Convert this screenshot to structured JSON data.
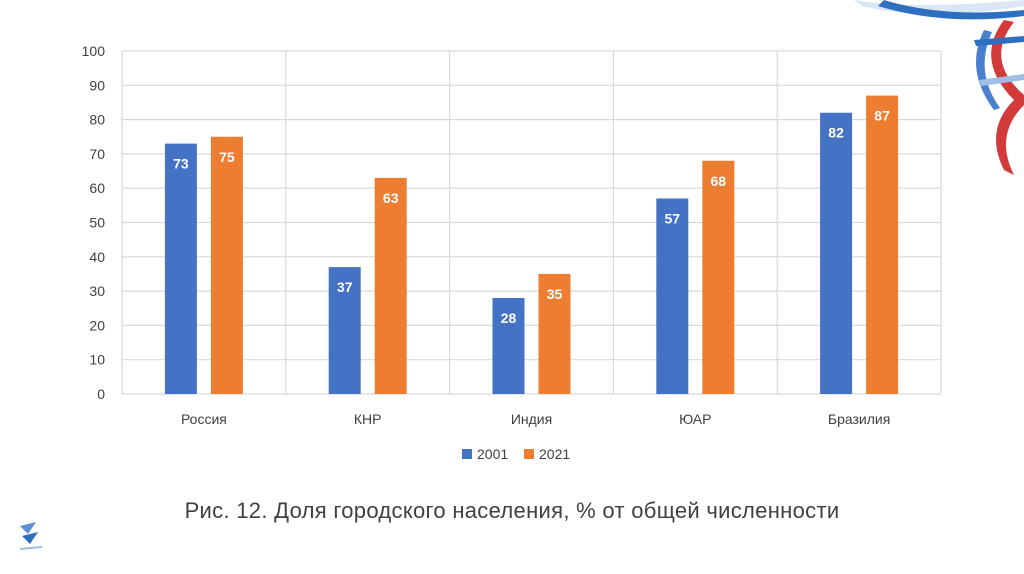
{
  "chart_data": {
    "type": "bar",
    "categories": [
      "Россия",
      "КНР",
      "Индия",
      "ЮАР",
      "Бразилия"
    ],
    "series": [
      {
        "name": "2001",
        "color": "#4472c4",
        "values": [
          73,
          37,
          28,
          57,
          82
        ]
      },
      {
        "name": "2021",
        "color": "#ed7d31",
        "values": [
          75,
          63,
          35,
          68,
          87
        ]
      }
    ],
    "yticks": [
      0,
      10,
      20,
      30,
      40,
      50,
      60,
      70,
      80,
      90,
      100
    ],
    "ylim": [
      0,
      100
    ],
    "legend_position": "bottom",
    "grid": true
  },
  "caption": "Рис. 12. Доля городского населения, % от общей численности"
}
